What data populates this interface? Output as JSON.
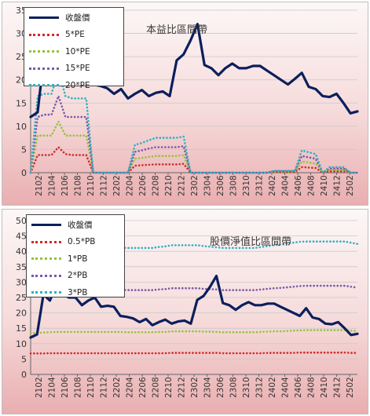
{
  "chart_data": [
    {
      "type": "line",
      "title": "本益比區間帶",
      "ylim": [
        0,
        35
      ],
      "yticks": [
        0,
        5,
        10,
        15,
        20,
        25,
        30,
        35
      ],
      "xtick_labels": [
        "2102",
        "2104",
        "2106",
        "2108",
        "2110",
        "2112",
        "2202",
        "2204",
        "2206",
        "2208",
        "2210",
        "2212",
        "2302",
        "2304",
        "2306",
        "2308",
        "2310",
        "2312",
        "2402",
        "2404",
        "2406",
        "2408",
        "2410",
        "2412",
        "2502"
      ],
      "grid": "horizontal",
      "legend": "top-left",
      "series": [
        {
          "name": "收盤價",
          "color": "#0b1f5c",
          "style": "solid",
          "values": [
            12,
            13,
            26,
            24,
            25,
            22,
            21.5,
            22.2,
            22.3,
            19,
            18.7,
            18.2,
            17,
            18,
            16,
            17,
            17.8,
            16.5,
            17.2,
            17.5,
            16.5,
            24.2,
            25.5,
            28.5,
            32,
            23.2,
            22.5,
            21,
            22.5,
            23.5,
            22.5,
            22.5,
            23,
            23,
            22,
            21,
            20,
            19,
            20.2,
            21.5,
            18.5,
            18,
            16.5,
            16.3,
            17,
            15,
            12.8,
            13.2
          ]
        },
        {
          "name": "5*PE",
          "color": "#d22a2a",
          "style": "dotted",
          "values": [
            0,
            3.8,
            3.8,
            3.8,
            5.5,
            4,
            3.8,
            3.8,
            3.8,
            0,
            0,
            0,
            0,
            0,
            0,
            1.5,
            1.6,
            1.7,
            1.8,
            1.8,
            1.8,
            1.8,
            1.9,
            0,
            0,
            0,
            0,
            0,
            0,
            0,
            0,
            0,
            0,
            0,
            0,
            0.1,
            0.1,
            0.1,
            0.1,
            1.2,
            1.1,
            1,
            0,
            0.3,
            0.3,
            0.3,
            0,
            0
          ]
        },
        {
          "name": "10*PE",
          "color": "#96c33c",
          "style": "dotted",
          "values": [
            0,
            8,
            8,
            8,
            11,
            8,
            8,
            8,
            8,
            0,
            0,
            0,
            0,
            0,
            0,
            3,
            3.2,
            3.4,
            3.6,
            3.6,
            3.6,
            3.6,
            3.8,
            0,
            0,
            0,
            0,
            0,
            0,
            0,
            0,
            0,
            0,
            0,
            0,
            0.2,
            0.2,
            0.2,
            0.2,
            2.4,
            2.2,
            2,
            0,
            0.6,
            0.6,
            0.6,
            0,
            0
          ]
        },
        {
          "name": "15*PE",
          "color": "#7b5aa8",
          "style": "dotted",
          "values": [
            0,
            12,
            12.5,
            12.5,
            16.5,
            12,
            12,
            12,
            12,
            0,
            0,
            0,
            0,
            0,
            0,
            4.5,
            4.8,
            5.2,
            5.5,
            5.5,
            5.5,
            5.5,
            5.7,
            0,
            0,
            0,
            0,
            0,
            0,
            0,
            0,
            0,
            0,
            0,
            0,
            0.3,
            0.3,
            0.3,
            0.3,
            3.6,
            3.3,
            3,
            0,
            0.9,
            0.9,
            0.9,
            0,
            0
          ]
        },
        {
          "name": "20*PE",
          "color": "#2fb0c4",
          "style": "dotted",
          "values": [
            0,
            16.5,
            17,
            17,
            22,
            16.5,
            16,
            16,
            16,
            0,
            0,
            0,
            0,
            0,
            0,
            6,
            6.4,
            7,
            7.5,
            7.5,
            7.5,
            7.5,
            7.8,
            0,
            0,
            0,
            0,
            0,
            0,
            0,
            0,
            0,
            0,
            0,
            0,
            0.4,
            0.4,
            0.4,
            0.4,
            4.8,
            4.4,
            4,
            0,
            1.2,
            1.2,
            1.2,
            0,
            0
          ]
        }
      ]
    },
    {
      "type": "line",
      "title": "股價淨值比區間帶",
      "ylim": [
        0,
        50
      ],
      "yticks": [
        0,
        5,
        10,
        15,
        20,
        25,
        30,
        35,
        40,
        45,
        50
      ],
      "xtick_labels": [
        "2102",
        "2104",
        "2106",
        "2108",
        "2110",
        "2112",
        "2202",
        "2204",
        "2206",
        "2208",
        "2210",
        "2212",
        "2302",
        "2304",
        "2306",
        "2308",
        "2310",
        "2312",
        "2402",
        "2404",
        "2406",
        "2408",
        "2410",
        "2412",
        "2502"
      ],
      "grid": "horizontal",
      "legend": "top-left",
      "series": [
        {
          "name": "收盤價",
          "color": "#0b1f5c",
          "style": "solid",
          "values": [
            12,
            13,
            26,
            24,
            29,
            26,
            25,
            25,
            22.5,
            24,
            25,
            22,
            22.3,
            22,
            19,
            18.7,
            18.2,
            17,
            18,
            16,
            17,
            17.8,
            16.5,
            17.2,
            17.5,
            16.5,
            24.2,
            25.5,
            28.5,
            32,
            23.2,
            22.5,
            21,
            22.5,
            23.5,
            22.5,
            22.5,
            23,
            23,
            22,
            21,
            20,
            19,
            21.5,
            18.5,
            18,
            16.5,
            16.3,
            17,
            15,
            12.8,
            13.2
          ]
        },
        {
          "name": "0.5*PB",
          "color": "#d22a2a",
          "style": "dotted",
          "values": [
            6.8,
            6.8,
            6.8,
            6.9,
            6.9,
            6.9,
            6.9,
            6.9,
            6.9,
            6.9,
            6.9,
            6.9,
            6.9,
            6.9,
            6.9,
            6.9,
            6.9,
            6.9,
            6.9,
            6.9,
            6.9,
            6.9,
            7,
            7,
            7,
            7,
            7,
            7,
            7,
            7,
            6.9,
            6.9,
            6.9,
            6.9,
            6.9,
            6.9,
            6.9,
            7,
            7,
            7,
            7,
            7,
            7.1,
            7.1,
            7.1,
            7.1,
            7.1,
            7.1,
            7.1,
            7.1,
            7,
            7
          ]
        },
        {
          "name": "1*PB",
          "color": "#96c33c",
          "style": "dotted",
          "values": [
            13.5,
            13.5,
            13.6,
            13.7,
            13.8,
            13.8,
            13.8,
            13.8,
            13.8,
            13.8,
            13.8,
            13.8,
            13.8,
            13.8,
            13.8,
            13.7,
            13.7,
            13.7,
            13.7,
            13.7,
            13.8,
            13.8,
            14,
            14,
            14,
            14,
            14,
            13.9,
            13.9,
            13.8,
            13.7,
            13.7,
            13.7,
            13.7,
            13.7,
            13.7,
            13.8,
            13.9,
            14,
            14,
            14.1,
            14.2,
            14.3,
            14.4,
            14.4,
            14.4,
            14.4,
            14.4,
            14.4,
            14.4,
            14.2,
            14.1
          ]
        },
        {
          "name": "2*PB",
          "color": "#7b5aa8",
          "style": "dotted",
          "values": [
            27,
            27,
            27.2,
            27.4,
            27.6,
            27.6,
            27.6,
            27.6,
            27.6,
            27.6,
            27.6,
            27.5,
            27.5,
            27.5,
            27.5,
            27.4,
            27.4,
            27.4,
            27.4,
            27.4,
            27.6,
            27.7,
            28,
            28,
            28,
            28,
            28,
            27.8,
            27.7,
            27.6,
            27.4,
            27.4,
            27.4,
            27.4,
            27.4,
            27.4,
            27.6,
            27.8,
            28,
            28.1,
            28.3,
            28.5,
            28.7,
            28.8,
            28.8,
            28.8,
            28.8,
            28.8,
            28.8,
            28.8,
            28.5,
            28.2
          ]
        },
        {
          "name": "3*PB",
          "color": "#2fb0c4",
          "style": "dotted",
          "values": [
            40.5,
            40.5,
            40.8,
            41,
            41.3,
            41.4,
            41.4,
            41.4,
            41.4,
            41.4,
            41.3,
            41.2,
            41.2,
            41.2,
            41.2,
            41.1,
            41.1,
            41.1,
            41.1,
            41.1,
            41.4,
            41.6,
            42,
            42,
            42,
            42,
            42,
            41.7,
            41.5,
            41.3,
            41.1,
            41.1,
            41.1,
            41.1,
            41.1,
            41.1,
            41.4,
            41.7,
            42,
            42.2,
            42.5,
            42.8,
            43.1,
            43.2,
            43.2,
            43.2,
            43.2,
            43.2,
            43.2,
            43.2,
            42.8,
            42.4
          ]
        }
      ]
    }
  ]
}
